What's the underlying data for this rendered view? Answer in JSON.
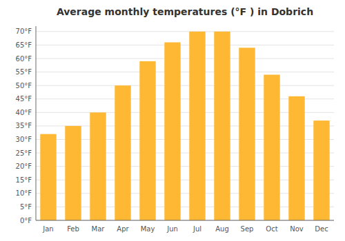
{
  "chart_data": {
    "type": "bar",
    "title": "Average monthly temperatures (°F ) in Dobrich",
    "categories": [
      "Jan",
      "Feb",
      "Mar",
      "Apr",
      "May",
      "Jun",
      "Jul",
      "Aug",
      "Sep",
      "Oct",
      "Nov",
      "Dec"
    ],
    "values": [
      32,
      35,
      40,
      50,
      59,
      66,
      70,
      70,
      64,
      54,
      46,
      37
    ],
    "color": "#FFB833",
    "ylim": [
      0,
      72
    ],
    "yticks": [
      {
        "value": 0,
        "label": "0°F"
      },
      {
        "value": 5,
        "label": "5°F"
      },
      {
        "value": 10,
        "label": "10°F"
      },
      {
        "value": 15,
        "label": "15°F"
      },
      {
        "value": 20,
        "label": "20°F"
      },
      {
        "value": 25,
        "label": "25°F"
      },
      {
        "value": 30,
        "label": "30°F"
      },
      {
        "value": 35,
        "label": "35°F"
      },
      {
        "value": 40,
        "label": "40°F"
      },
      {
        "value": 45,
        "label": "45°F"
      },
      {
        "value": 50,
        "label": "50°F"
      },
      {
        "value": 55,
        "label": "55°F"
      },
      {
        "value": 60,
        "label": "60°F"
      },
      {
        "value": 65,
        "label": "65°F"
      },
      {
        "value": 70,
        "label": "70°F"
      }
    ],
    "grid": true
  }
}
